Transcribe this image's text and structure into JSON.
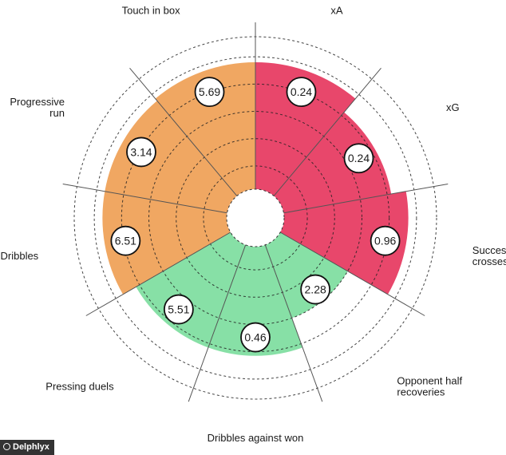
{
  "chart_data": {
    "type": "radar",
    "max_value": 1,
    "categories": [
      {
        "label": "xA",
        "value": 0.24,
        "fill_fraction": 0.93,
        "group": "attack"
      },
      {
        "label": "xG",
        "value": 0.24,
        "fill_fraction": 0.8,
        "group": "attack"
      },
      {
        "label": "Successful\ncrosses",
        "value": 0.96,
        "fill_fraction": 0.91,
        "group": "attack"
      },
      {
        "label": "Opponent half\nrecoveries",
        "value": 2.28,
        "fill_fraction": 0.57,
        "group": "defence"
      },
      {
        "label": "Dribbles against won",
        "value": 0.46,
        "fill_fraction": 0.8,
        "group": "defence"
      },
      {
        "label": "Pressing duels",
        "value": 5.51,
        "fill_fraction": 0.8,
        "group": "defence"
      },
      {
        "label": "Dribbles",
        "value": 6.51,
        "fill_fraction": 0.91,
        "group": "possession"
      },
      {
        "label": "Progressive\nrun",
        "value": 3.14,
        "fill_fraction": 0.91,
        "group": "possession"
      },
      {
        "label": "Touch in box",
        "value": 5.69,
        "fill_fraction": 0.93,
        "group": "possession"
      }
    ],
    "group_colors": {
      "attack": "#e8476b",
      "defence": "#87e0a6",
      "possession": "#f0a762"
    },
    "grid": true,
    "ring_count": 5
  },
  "credit": "Delphlyx"
}
